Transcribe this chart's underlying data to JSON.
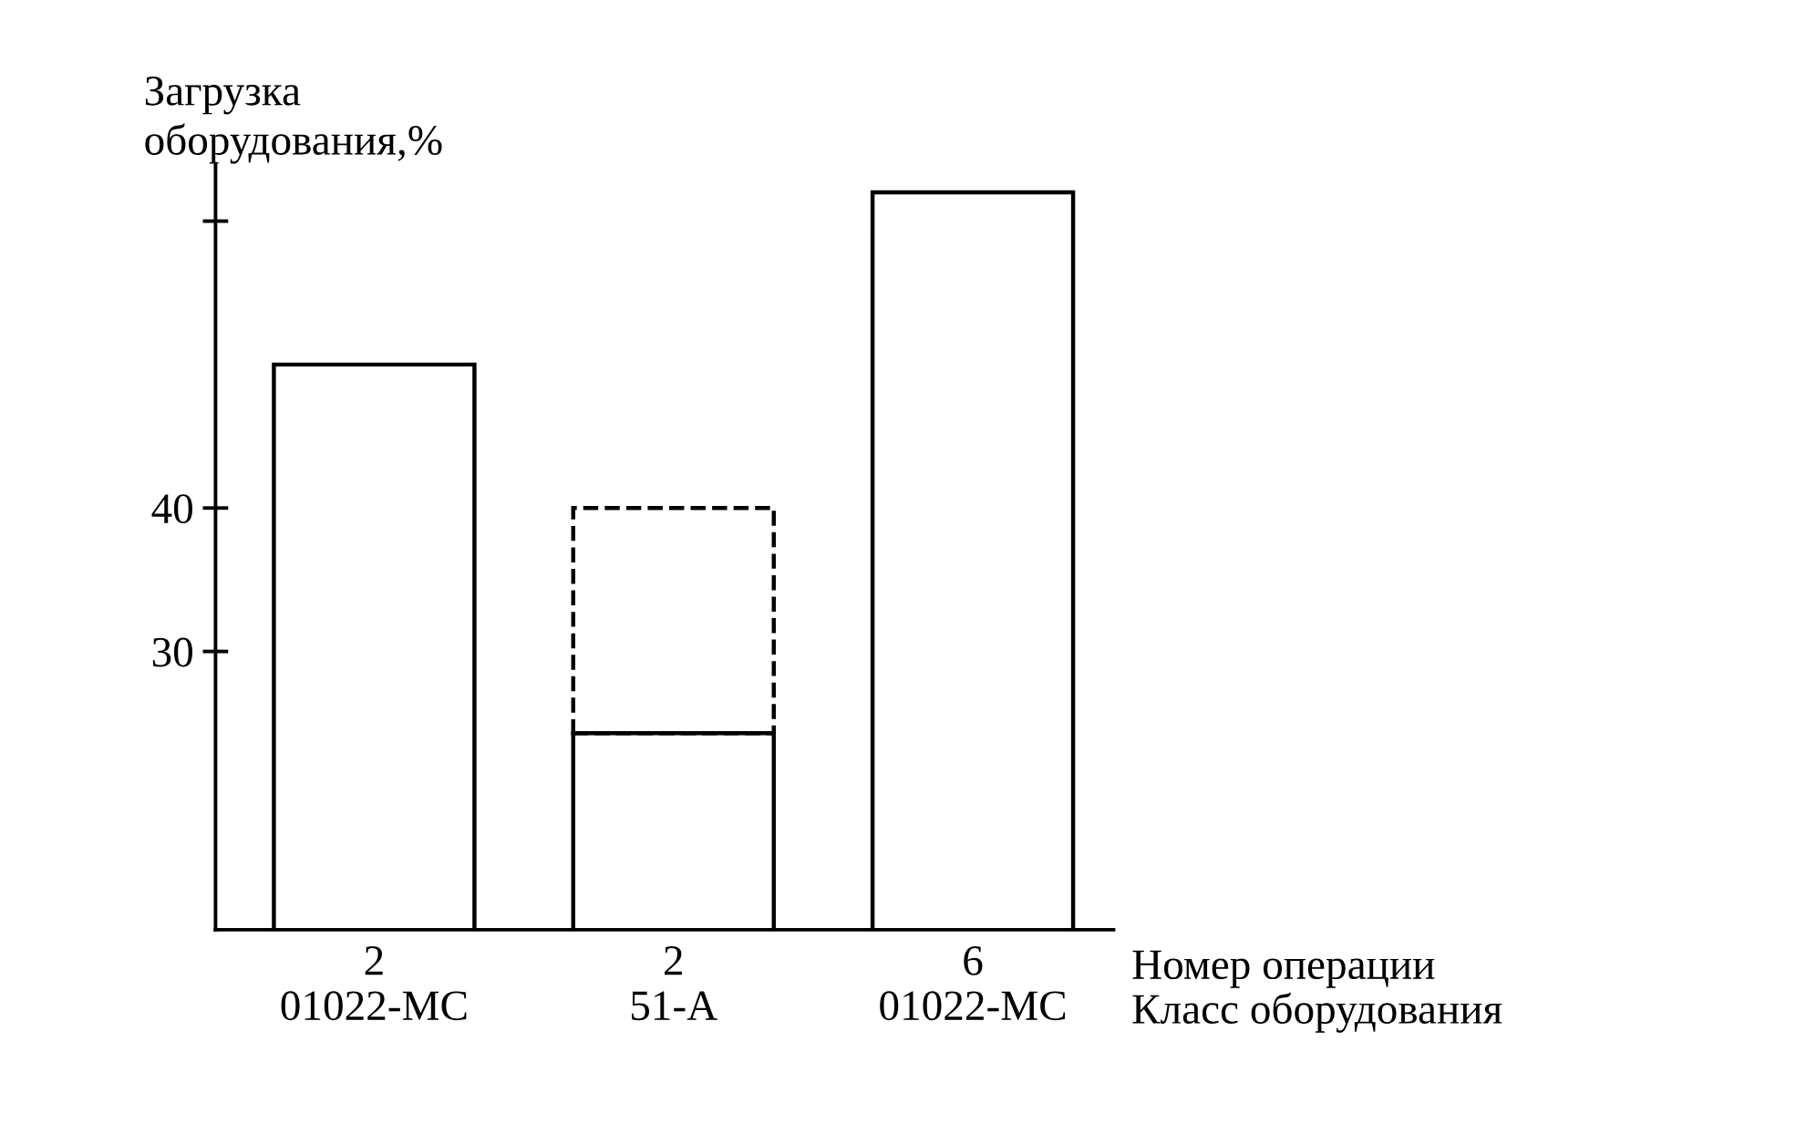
{
  "chart_data": {
    "type": "bar",
    "stacked": true,
    "ylabel": "Загрузка\nоборудования,%",
    "xlabel": "Номер операции\nКласс оборудования",
    "categories": [
      "2\n01022-МС",
      "2\n51-А",
      "6\n01022-МС"
    ],
    "series": [
      {
        "color": "#000000",
        "line_style": "solid",
        "values": [
          50,
          24.3,
          62
        ]
      },
      {
        "color": "#000000",
        "line_style": "dashed",
        "values": [
          null,
          15.7,
          null
        ]
      }
    ],
    "ylim": [
      10.6,
      64
    ],
    "yticks": [
      30,
      40,
      {
        "value": 60,
        "label": null
      }
    ],
    "grid": false,
    "legend": false
  }
}
